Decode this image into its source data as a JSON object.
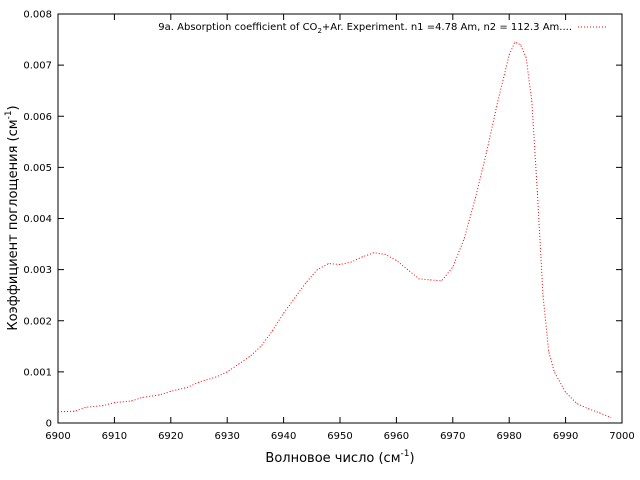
{
  "chart_data": {
    "type": "line",
    "xlabel": "Волновое число (см",
    "xlabel_sup": "-1",
    "xlabel_end": ")",
    "ylabel": "Коэффициент поглощения (см",
    "ylabel_sup": "-1",
    "ylabel_end": ")",
    "xlim": [
      6900,
      7000
    ],
    "ylim": [
      0,
      0.008
    ],
    "x_ticks": [
      "6900",
      "6910",
      "6920",
      "6930",
      "6940",
      "6950",
      "6960",
      "6970",
      "6980",
      "6990",
      "7000"
    ],
    "y_ticks": [
      "0",
      "0.001",
      "0.002",
      "0.003",
      "0.004",
      "0.005",
      "0.006",
      "0.007",
      "0.008"
    ],
    "grid": false,
    "legend_position": "top-right",
    "series": [
      {
        "name": "9a. Absorption coefficient of CO",
        "name_sub": "2",
        "name_rest": "+Ar. Experiment. n1 =4.78 Am, n2 = 112.3 Am....",
        "color": "#ff0000",
        "style": "dotted",
        "points": [
          [
            6900,
            0.00022
          ],
          [
            6903,
            0.00023
          ],
          [
            6905,
            0.00031
          ],
          [
            6908,
            0.00034
          ],
          [
            6910,
            0.0004
          ],
          [
            6913,
            0.00043
          ],
          [
            6915,
            0.0005
          ],
          [
            6918,
            0.00055
          ],
          [
            6920,
            0.00062
          ],
          [
            6923,
            0.0007
          ],
          [
            6925,
            0.0008
          ],
          [
            6928,
            0.0009
          ],
          [
            6930,
            0.001
          ],
          [
            6932,
            0.00115
          ],
          [
            6934,
            0.0013
          ],
          [
            6936,
            0.0015
          ],
          [
            6938,
            0.0018
          ],
          [
            6940,
            0.00215
          ],
          [
            6942,
            0.00245
          ],
          [
            6944,
            0.00275
          ],
          [
            6946,
            0.003
          ],
          [
            6948,
            0.00312
          ],
          [
            6950,
            0.0031
          ],
          [
            6952,
            0.00315
          ],
          [
            6954,
            0.00325
          ],
          [
            6956,
            0.00333
          ],
          [
            6958,
            0.0033
          ],
          [
            6960,
            0.00318
          ],
          [
            6962,
            0.003
          ],
          [
            6964,
            0.00282
          ],
          [
            6966,
            0.0028
          ],
          [
            6968,
            0.00278
          ],
          [
            6970,
            0.00305
          ],
          [
            6972,
            0.0036
          ],
          [
            6974,
            0.0044
          ],
          [
            6976,
            0.0053
          ],
          [
            6978,
            0.0063
          ],
          [
            6980,
            0.0072
          ],
          [
            6981,
            0.00745
          ],
          [
            6982,
            0.0074
          ],
          [
            6983,
            0.00715
          ],
          [
            6984,
            0.0063
          ],
          [
            6985,
            0.0045
          ],
          [
            6986,
            0.0025
          ],
          [
            6987,
            0.0014
          ],
          [
            6988,
            0.001
          ],
          [
            6990,
            0.0006
          ],
          [
            6992,
            0.00038
          ],
          [
            6994,
            0.00028
          ],
          [
            6996,
            0.0002
          ],
          [
            6998,
            0.00011
          ]
        ]
      }
    ]
  }
}
